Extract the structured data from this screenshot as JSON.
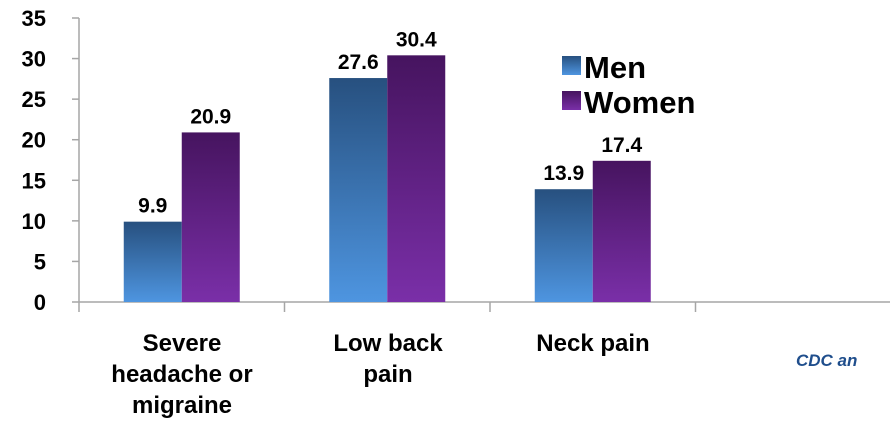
{
  "chart_data": {
    "type": "bar",
    "categories": [
      "Severe headache or migraine",
      "Low back pain",
      "Neck pain",
      ""
    ],
    "series": [
      {
        "name": "Men",
        "values": [
          9.9,
          27.6,
          13.9,
          null
        ]
      },
      {
        "name": "Women",
        "values": [
          20.9,
          30.4,
          17.4,
          null
        ]
      }
    ],
    "data_labels": [
      [
        "9.9",
        "27.6",
        "13.9"
      ],
      [
        "20.9",
        "30.4",
        "17.4"
      ]
    ],
    "category_lines": [
      [
        "Severe",
        "headache or",
        "migraine"
      ],
      [
        "Low back",
        "pain"
      ],
      [
        "Neck pain"
      ]
    ],
    "y_ticks": [
      "0",
      "5",
      "10",
      "15",
      "20",
      "25",
      "30",
      "35"
    ],
    "ylim": [
      0,
      35
    ],
    "grid": false,
    "legend": "upper-right-inside",
    "colors": {
      "Men": "#3a78c4",
      "Women": "#5e1d84",
      "axis": "#a6a6a6"
    }
  },
  "source_text": "CDC an"
}
